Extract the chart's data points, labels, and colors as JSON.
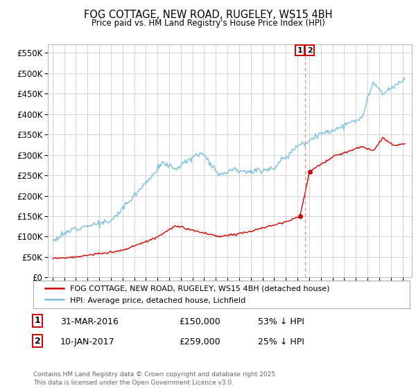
{
  "title": "FOG COTTAGE, NEW ROAD, RUGELEY, WS15 4BH",
  "subtitle": "Price paid vs. HM Land Registry's House Price Index (HPI)",
  "hpi_color": "#7bbfde",
  "property_color": "#cc0000",
  "annotation_color": "#cc0000",
  "background_color": "#ffffff",
  "grid_color": "#cccccc",
  "ylim": [
    0,
    570000
  ],
  "yticks": [
    0,
    50000,
    100000,
    150000,
    200000,
    250000,
    300000,
    350000,
    400000,
    450000,
    500000,
    550000
  ],
  "legend_entries": [
    "FOG COTTAGE, NEW ROAD, RUGELEY, WS15 4BH (detached house)",
    "HPI: Average price, detached house, Lichfield"
  ],
  "sale1_date": "31-MAR-2016",
  "sale1_price": 150000,
  "sale1_t": 2016.21,
  "sale2_date": "10-JAN-2017",
  "sale2_price": 259000,
  "sale2_t": 2017.03,
  "sale1_note": "53% ↓ HPI",
  "sale2_note": "25% ↓ HPI",
  "copyright": "Contains HM Land Registry data © Crown copyright and database right 2025.\nThis data is licensed under the Open Government Licence v3.0.",
  "xlim_left": 1994.6,
  "xlim_right": 2025.8
}
